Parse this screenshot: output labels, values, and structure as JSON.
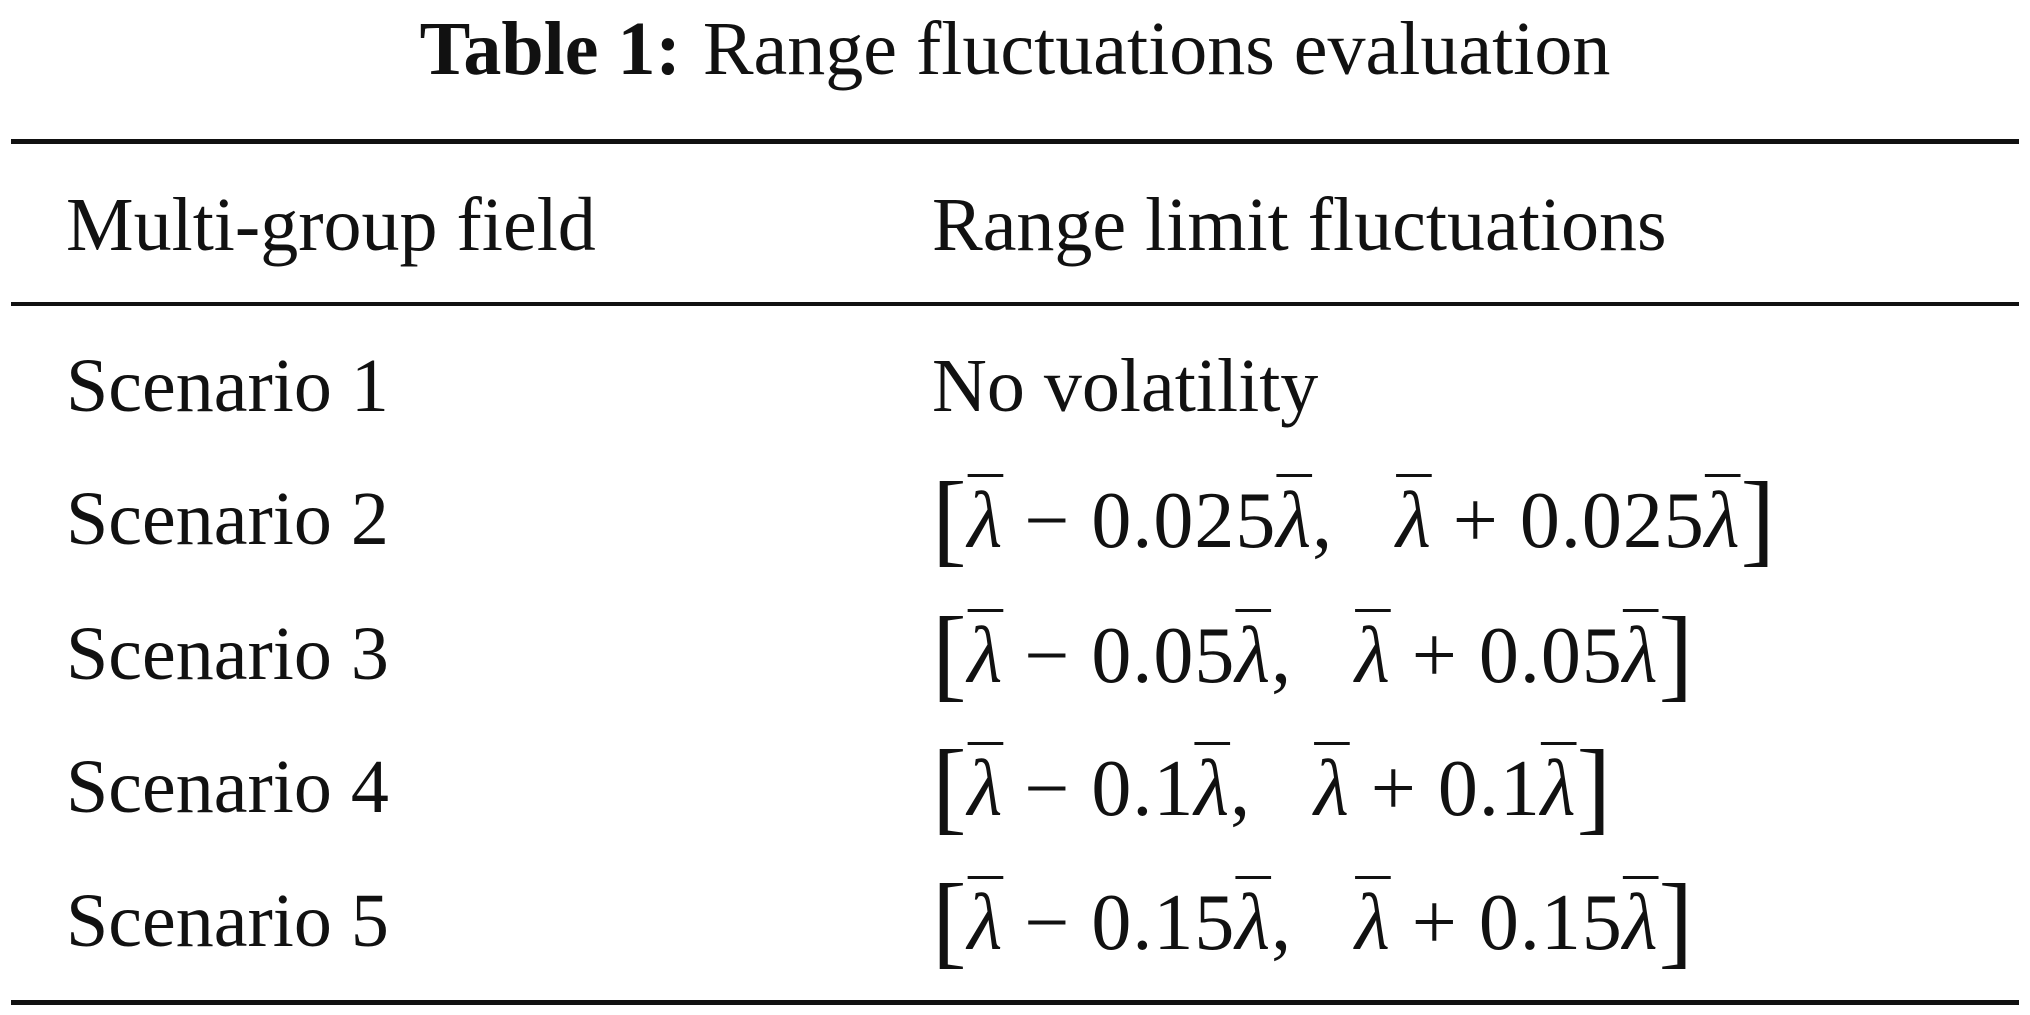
{
  "table": {
    "caption_label": "Table 1:",
    "caption_text": "Range fluctuations evaluation",
    "headers": [
      "Multi-group field",
      "Range limit fluctuations"
    ],
    "rows": [
      {
        "scenario": "Scenario 1",
        "fluctuation": "No volatility"
      },
      {
        "scenario": "Scenario 2",
        "open": "[",
        "lhs": "λ − 0.025λ,",
        "rhs": "λ + 0.025λ",
        "close": "]"
      },
      {
        "scenario": "Scenario 3",
        "open": "[",
        "lhs": "λ − 0.05λ,",
        "rhs": "λ + 0.05λ",
        "close": "]"
      },
      {
        "scenario": "Scenario 4",
        "open": "[",
        "lhs": "λ − 0.1λ,",
        "rhs": "λ + 0.1λ",
        "close": "]"
      },
      {
        "scenario": "Scenario 5",
        "open": "[",
        "lhs": "λ − 0.15λ,",
        "rhs": "λ + 0.15λ",
        "close": "]"
      }
    ]
  }
}
